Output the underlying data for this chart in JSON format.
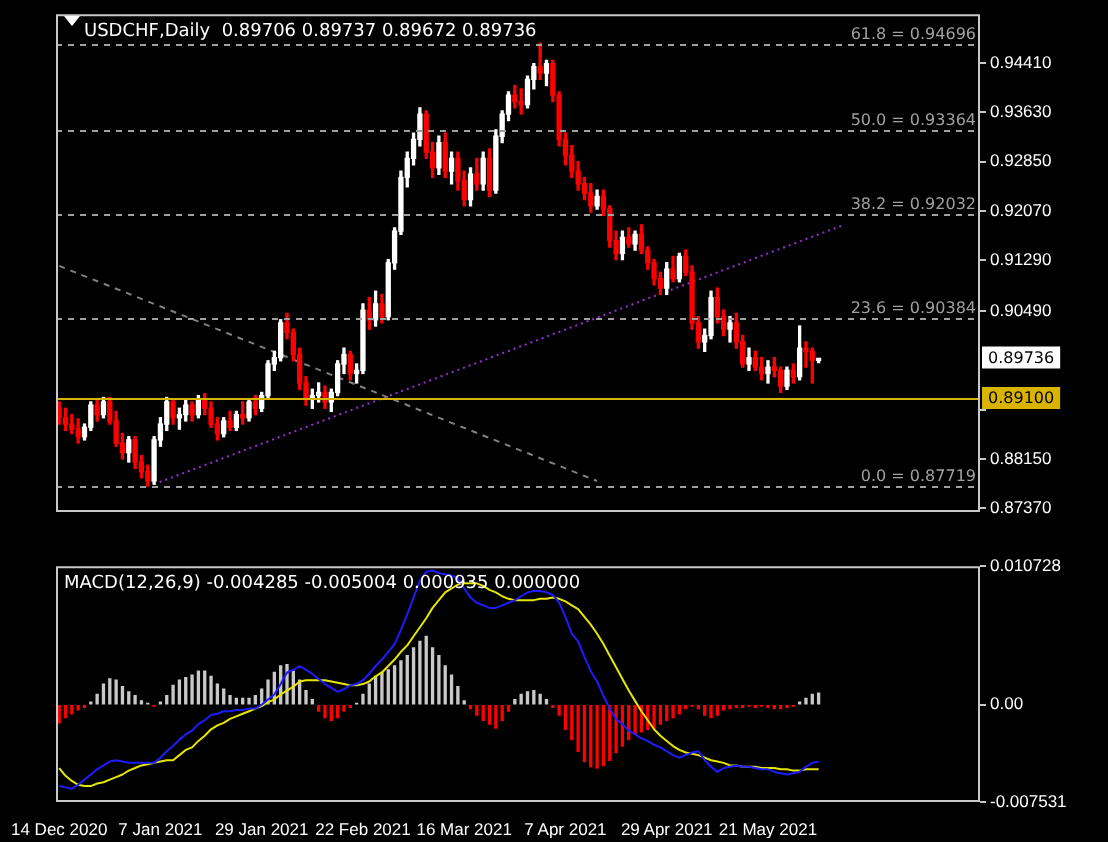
{
  "chart_data": [
    {
      "type": "candlestick",
      "title": "USDCHF,Daily  0.89706 0.89737 0.89672 0.89736",
      "categories": [
        null,
        null,
        null,
        null,
        null,
        null,
        null,
        null,
        null,
        null,
        null,
        null,
        null,
        null,
        null,
        null,
        null,
        null,
        null,
        null,
        null,
        null,
        null,
        null,
        null,
        null,
        null,
        null,
        null,
        null,
        null,
        null,
        null,
        null,
        null,
        null,
        null,
        null,
        null,
        null,
        null,
        null,
        null,
        null,
        null,
        null,
        null,
        null,
        null,
        null,
        null,
        null,
        null,
        null,
        null,
        null,
        null,
        null,
        null,
        null,
        null,
        null,
        null,
        null,
        null,
        null,
        null,
        null,
        null,
        null,
        null,
        null,
        null,
        null,
        null,
        null,
        null,
        null,
        null,
        null,
        null,
        null,
        null,
        null,
        null,
        null,
        null,
        null,
        null,
        null,
        null,
        null,
        null,
        null,
        null,
        null,
        null,
        null,
        null,
        null,
        null,
        null,
        null,
        null,
        null,
        null,
        null,
        null,
        null,
        null,
        null,
        null,
        null,
        null,
        null,
        null,
        null,
        null,
        null,
        null,
        null,
        null,
        null,
        null,
        null,
        null,
        null,
        null,
        null,
        null,
        null,
        null,
        null,
        null,
        null,
        null,
        null,
        null,
        null,
        null,
        null,
        null,
        null,
        null,
        null,
        null
      ],
      "ohlc": [
        [
          0.8895,
          0.8905,
          0.887,
          0.888
        ],
        [
          0.888,
          0.8895,
          0.886,
          0.887
        ],
        [
          0.887,
          0.8885,
          0.8855,
          0.8862
        ],
        [
          0.8862,
          0.8878,
          0.884,
          0.885
        ],
        [
          0.885,
          0.887,
          0.8845,
          0.8865
        ],
        [
          0.8865,
          0.8905,
          0.886,
          0.89
        ],
        [
          0.89,
          0.891,
          0.8875,
          0.8885
        ],
        [
          0.8885,
          0.8912,
          0.888,
          0.8905
        ],
        [
          0.8905,
          0.8912,
          0.887,
          0.8875
        ],
        [
          0.8875,
          0.889,
          0.8835,
          0.884
        ],
        [
          0.884,
          0.8855,
          0.8815,
          0.8825
        ],
        [
          0.8825,
          0.885,
          0.881,
          0.8845
        ],
        [
          0.8845,
          0.885,
          0.88,
          0.881
        ],
        [
          0.881,
          0.882,
          0.8785,
          0.8795
        ],
        [
          0.8795,
          0.8805,
          0.8772,
          0.878
        ],
        [
          0.878,
          0.885,
          0.8775,
          0.8845
        ],
        [
          0.8845,
          0.888,
          0.8835,
          0.887
        ],
        [
          0.887,
          0.8912,
          0.886,
          0.8905
        ],
        [
          0.8905,
          0.891,
          0.887,
          0.888
        ],
        [
          0.888,
          0.8895,
          0.8862,
          0.8885
        ],
        [
          0.8885,
          0.891,
          0.8875,
          0.89
        ],
        [
          0.89,
          0.8905,
          0.8875,
          0.8885
        ],
        [
          0.8885,
          0.8915,
          0.888,
          0.891
        ],
        [
          0.891,
          0.8918,
          0.8885,
          0.8895
        ],
        [
          0.8895,
          0.8905,
          0.8865,
          0.887
        ],
        [
          0.887,
          0.888,
          0.8845,
          0.8855
        ],
        [
          0.8855,
          0.888,
          0.885,
          0.8875
        ],
        [
          0.8875,
          0.889,
          0.886,
          0.8865
        ],
        [
          0.8865,
          0.889,
          0.886,
          0.8885
        ],
        [
          0.8885,
          0.8905,
          0.887,
          0.888
        ],
        [
          0.888,
          0.891,
          0.8875,
          0.8905
        ],
        [
          0.8905,
          0.8915,
          0.8885,
          0.8895
        ],
        [
          0.8895,
          0.892,
          0.889,
          0.8915
        ],
        [
          0.8915,
          0.897,
          0.891,
          0.8965
        ],
        [
          0.8965,
          0.8985,
          0.8955,
          0.8975
        ],
        [
          0.8975,
          0.9035,
          0.897,
          0.903
        ],
        [
          0.903,
          0.9045,
          0.9005,
          0.9015
        ],
        [
          0.9015,
          0.902,
          0.897,
          0.898
        ],
        [
          0.898,
          0.899,
          0.8925,
          0.8935
        ],
        [
          0.8935,
          0.8945,
          0.89,
          0.891
        ],
        [
          0.891,
          0.8925,
          0.8895,
          0.8915
        ],
        [
          0.8915,
          0.8935,
          0.8905,
          0.892
        ],
        [
          0.892,
          0.893,
          0.8895,
          0.8905
        ],
        [
          0.8905,
          0.8925,
          0.889,
          0.892
        ],
        [
          0.892,
          0.897,
          0.8915,
          0.8965
        ],
        [
          0.8965,
          0.899,
          0.895,
          0.898
        ],
        [
          0.898,
          0.8985,
          0.894,
          0.895
        ],
        [
          0.895,
          0.8965,
          0.8935,
          0.8955
        ],
        [
          0.8955,
          0.906,
          0.895,
          0.905
        ],
        [
          0.905,
          0.907,
          0.902,
          0.9035
        ],
        [
          0.9035,
          0.908,
          0.9025,
          0.906
        ],
        [
          0.906,
          0.9075,
          0.903,
          0.904
        ],
        [
          0.904,
          0.913,
          0.9035,
          0.9125
        ],
        [
          0.9125,
          0.918,
          0.9115,
          0.9175
        ],
        [
          0.9175,
          0.927,
          0.917,
          0.926
        ],
        [
          0.926,
          0.93,
          0.9245,
          0.929
        ],
        [
          0.929,
          0.933,
          0.928,
          0.932
        ],
        [
          0.932,
          0.937,
          0.931,
          0.936
        ],
        [
          0.936,
          0.9365,
          0.929,
          0.93
        ],
        [
          0.93,
          0.9315,
          0.926,
          0.9275
        ],
        [
          0.9275,
          0.9325,
          0.9265,
          0.9315
        ],
        [
          0.9315,
          0.933,
          0.926,
          0.927
        ],
        [
          0.927,
          0.93,
          0.925,
          0.929
        ],
        [
          0.929,
          0.93,
          0.924,
          0.9255
        ],
        [
          0.9255,
          0.927,
          0.9215,
          0.9225
        ],
        [
          0.9225,
          0.9275,
          0.9215,
          0.9265
        ],
        [
          0.9265,
          0.929,
          0.924,
          0.925
        ],
        [
          0.925,
          0.93,
          0.924,
          0.929
        ],
        [
          0.929,
          0.9305,
          0.923,
          0.924
        ],
        [
          0.924,
          0.9335,
          0.9235,
          0.9325
        ],
        [
          0.9325,
          0.9365,
          0.9315,
          0.936
        ],
        [
          0.936,
          0.9395,
          0.935,
          0.939
        ],
        [
          0.939,
          0.9405,
          0.937,
          0.938
        ],
        [
          0.938,
          0.94,
          0.936,
          0.9375
        ],
        [
          0.9375,
          0.942,
          0.937,
          0.9415
        ],
        [
          0.9415,
          0.944,
          0.94,
          0.9435
        ],
        [
          0.9435,
          0.9472,
          0.9415,
          0.9425
        ],
        [
          0.9425,
          0.9445,
          0.9405,
          0.944
        ],
        [
          0.944,
          0.9445,
          0.938,
          0.939
        ],
        [
          0.939,
          0.9395,
          0.931,
          0.932
        ],
        [
          0.932,
          0.933,
          0.928,
          0.9295
        ],
        [
          0.9295,
          0.931,
          0.926,
          0.927
        ],
        [
          0.927,
          0.9285,
          0.924,
          0.925
        ],
        [
          0.925,
          0.926,
          0.9225,
          0.9235
        ],
        [
          0.9235,
          0.925,
          0.9205,
          0.9215
        ],
        [
          0.9215,
          0.924,
          0.921,
          0.923
        ],
        [
          0.923,
          0.924,
          0.92,
          0.921
        ],
        [
          0.921,
          0.9215,
          0.915,
          0.916
        ],
        [
          0.916,
          0.9175,
          0.913,
          0.914
        ],
        [
          0.914,
          0.9175,
          0.913,
          0.9165
        ],
        [
          0.9165,
          0.918,
          0.915,
          0.9155
        ],
        [
          0.9155,
          0.9175,
          0.9145,
          0.917
        ],
        [
          0.917,
          0.9185,
          0.914,
          0.9145
        ],
        [
          0.9145,
          0.915,
          0.9115,
          0.9125
        ],
        [
          0.9125,
          0.913,
          0.909,
          0.91
        ],
        [
          0.91,
          0.911,
          0.9075,
          0.9085
        ],
        [
          0.9085,
          0.9125,
          0.9075,
          0.9115
        ],
        [
          0.9115,
          0.9135,
          0.9095,
          0.91
        ],
        [
          0.91,
          0.914,
          0.9095,
          0.9135
        ],
        [
          0.9135,
          0.9145,
          0.9105,
          0.911
        ],
        [
          0.911,
          0.912,
          0.902,
          0.903
        ],
        [
          0.903,
          0.904,
          0.899,
          0.9
        ],
        [
          0.9,
          0.902,
          0.8985,
          0.901
        ],
        [
          0.901,
          0.908,
          0.9005,
          0.907
        ],
        [
          0.907,
          0.9085,
          0.903,
          0.904
        ],
        [
          0.904,
          0.905,
          0.901,
          0.902
        ],
        [
          0.902,
          0.904,
          0.9,
          0.903
        ],
        [
          0.903,
          0.9045,
          0.899,
          0.9
        ],
        [
          0.9,
          0.901,
          0.896,
          0.8965
        ],
        [
          0.8965,
          0.899,
          0.8955,
          0.8975
        ],
        [
          0.8975,
          0.8985,
          0.8955,
          0.896
        ],
        [
          0.896,
          0.8975,
          0.894,
          0.895
        ],
        [
          0.895,
          0.897,
          0.8935,
          0.896
        ],
        [
          0.896,
          0.8975,
          0.8945,
          0.8955
        ],
        [
          0.8955,
          0.896,
          0.892,
          0.893
        ],
        [
          0.893,
          0.896,
          0.8925,
          0.8955
        ],
        [
          0.8955,
          0.8965,
          0.8935,
          0.8945
        ],
        [
          0.8945,
          0.9025,
          0.894,
          0.899
        ],
        [
          0.899,
          0.9,
          0.896,
          0.8985
        ],
        [
          0.8985,
          0.899,
          0.8935,
          0.8971
        ],
        [
          0.89706,
          0.89737,
          0.89672,
          0.89736
        ],
        null,
        null,
        null,
        null,
        null,
        null,
        null,
        null,
        null,
        null,
        null,
        null,
        null,
        null,
        null,
        null,
        null,
        null,
        null,
        null,
        null,
        null,
        null,
        null,
        null
      ],
      "colors": [
        "#ff0000",
        "#ff0000",
        "#ff0000",
        "#ff0000",
        "#ffffff",
        "#ffffff",
        "#ff0000",
        "#ffffff",
        "#ff0000",
        "#ff0000",
        "#ff0000",
        "#ffffff",
        "#ff0000",
        "#ff0000",
        "#ff0000",
        "#ffffff",
        "#ffffff",
        "#ffffff",
        "#ff0000",
        "#ffffff",
        "#ffffff",
        "#ff0000",
        "#ffffff",
        "#ff0000",
        "#ff0000",
        "#ff0000",
        "#ffffff",
        "#ff0000",
        "#ffffff",
        "#ff0000",
        "#ffffff",
        "#ff0000",
        "#ffffff",
        "#ffffff",
        "#ffffff",
        "#ffffff",
        "#ff0000",
        "#ff0000",
        "#ff0000",
        "#ff0000",
        "#ffffff",
        "#ffffff",
        "#ff0000",
        "#ffffff",
        "#ffffff",
        "#ffffff",
        "#ff0000",
        "#ffffff",
        "#ffffff",
        "#ff0000",
        "#ffffff",
        "#ff0000",
        "#ffffff",
        "#ffffff",
        "#ffffff",
        "#ffffff",
        "#ffffff",
        "#ffffff",
        "#ff0000",
        "#ff0000",
        "#ffffff",
        "#ff0000",
        "#ffffff",
        "#ff0000",
        "#ff0000",
        "#ffffff",
        "#ff0000",
        "#ffffff",
        "#ff0000",
        "#ffffff",
        "#ffffff",
        "#ffffff",
        "#ff0000",
        "#ff0000",
        "#ffffff",
        "#ffffff",
        "#ff0000",
        "#ffffff",
        "#ff0000",
        "#ff0000",
        "#ff0000",
        "#ff0000",
        "#ff0000",
        "#ff0000",
        "#ff0000",
        "#ffffff",
        "#ff0000",
        "#ff0000",
        "#ff0000",
        "#ffffff",
        "#ff0000",
        "#ffffff",
        "#ff0000",
        "#ff0000",
        "#ff0000",
        "#ff0000",
        "#ffffff",
        "#ff0000",
        "#ffffff",
        "#ff0000",
        "#ff0000",
        "#ff0000",
        "#ffffff",
        "#ffffff",
        "#ff0000",
        "#ff0000",
        "#ffffff",
        "#ff0000",
        "#ff0000",
        "#ffffff",
        "#ff0000",
        "#ff0000",
        "#ffffff",
        "#ff0000",
        "#ff0000",
        "#ffffff",
        "#ff0000",
        "#ffffff",
        "#ff0000",
        "#ff0000",
        "#ffffff",
        null,
        null,
        null,
        null,
        null,
        null,
        null,
        null,
        null,
        null,
        null,
        null,
        null,
        null,
        null,
        null,
        null,
        null,
        null,
        null,
        null,
        null,
        null,
        null,
        null
      ],
      "series": [
        {
          "type": "line",
          "color": "#808080",
          "line_style": "dashed",
          "values": [
            0.912,
            null,
            null,
            null,
            null,
            null,
            null,
            null,
            null,
            null,
            null,
            null,
            null,
            null,
            null,
            null,
            null,
            null,
            null,
            null,
            null,
            null,
            null,
            null,
            null,
            null,
            null,
            null,
            null,
            null,
            null,
            null,
            null,
            null,
            null,
            null,
            null,
            null,
            null,
            null,
            null,
            null,
            null,
            null,
            null,
            null,
            null,
            null,
            null,
            null,
            null,
            null,
            null,
            null,
            null,
            null,
            null,
            null,
            null,
            null,
            null,
            null,
            null,
            null,
            null,
            null,
            null,
            null,
            null,
            null,
            null,
            null,
            null,
            null,
            null,
            null,
            null,
            null,
            null,
            null,
            null,
            null,
            null,
            null,
            null,
            0.878,
            null,
            null,
            null,
            null,
            null,
            null,
            null,
            null,
            null,
            null,
            null,
            null,
            null,
            null,
            null,
            null,
            null,
            null,
            null,
            null,
            null,
            null,
            null,
            null,
            null,
            null,
            null,
            null,
            null,
            null,
            null,
            null,
            null,
            null,
            null,
            null,
            null,
            null,
            null,
            null,
            null,
            null,
            null,
            null,
            null,
            null,
            null,
            null,
            null,
            null,
            null,
            null,
            null,
            null,
            null,
            null,
            null,
            null,
            null,
            null
          ]
        },
        {
          "type": "line",
          "color": "#9a2fd6",
          "line_style": "dotted",
          "values": [
            null,
            null,
            null,
            null,
            null,
            null,
            null,
            null,
            null,
            null,
            null,
            null,
            null,
            null,
            null,
            0.8775,
            null,
            null,
            null,
            null,
            null,
            null,
            null,
            null,
            null,
            null,
            null,
            null,
            null,
            null,
            null,
            null,
            null,
            null,
            null,
            null,
            null,
            null,
            null,
            null,
            null,
            null,
            null,
            null,
            null,
            null,
            null,
            null,
            null,
            null,
            null,
            null,
            null,
            null,
            null,
            null,
            null,
            null,
            null,
            null,
            null,
            null,
            null,
            null,
            null,
            null,
            null,
            null,
            null,
            null,
            null,
            null,
            null,
            null,
            null,
            null,
            null,
            null,
            null,
            null,
            null,
            null,
            null,
            null,
            null,
            null,
            null,
            null,
            null,
            null,
            null,
            null,
            null,
            null,
            null,
            null,
            null,
            null,
            null,
            null,
            null,
            null,
            null,
            null,
            null,
            null,
            null,
            null,
            null,
            null,
            null,
            null,
            null,
            null,
            null,
            null,
            null,
            null,
            null,
            null,
            null,
            null,
            null,
            null,
            0.9185,
            null,
            null,
            null,
            null,
            null,
            null,
            null,
            null,
            null,
            null,
            null,
            null,
            null,
            null,
            null,
            null,
            null,
            null,
            null,
            null,
            null
          ]
        }
      ],
      "ylim": [
        0.8731,
        0.9518
      ],
      "yticks": [
        {
          "value": 0.9441,
          "label": "0.94410"
        },
        {
          "value": 0.9363,
          "label": "0.93630"
        },
        {
          "value": 0.9285,
          "label": "0.92850"
        },
        {
          "value": 0.9207,
          "label": "0.92070"
        },
        {
          "value": 0.9129,
          "label": "0.91290"
        },
        {
          "value": 0.9049,
          "label": "0.90490"
        },
        {
          "value": 0.8893,
          "label": null
        },
        {
          "value": 0.8815,
          "label": "0.88150"
        },
        {
          "value": 0.8737,
          "label": "0.87370"
        }
      ],
      "ref_lines": [
        {
          "axis": "y",
          "value": 0.94696,
          "label": "61.8 = 0.94696",
          "color": "#a0a0a0",
          "line_style": "dashed"
        },
        {
          "axis": "y",
          "value": 0.93364,
          "label": "50.0 = 0.93364",
          "color": "#a0a0a0",
          "line_style": "dashed"
        },
        {
          "axis": "y",
          "value": 0.92032,
          "label": "38.2 = 0.92032",
          "color": "#a0a0a0",
          "line_style": "dashed"
        },
        {
          "axis": "y",
          "value": 0.90384,
          "label": "23.6 = 0.90384",
          "color": "#a0a0a0",
          "line_style": "dashed"
        },
        {
          "axis": "y",
          "value": 0.87719,
          "label": "0.0 = 0.87719",
          "color": "#a0a0a0",
          "line_style": "dashed"
        },
        {
          "axis": "y",
          "value": 0.891,
          "label": "0.89100",
          "color": "#d8b400",
          "line_style": "solid"
        }
      ],
      "annotations": [
        "0.89736"
      ],
      "tick_labels": "y",
      "grid": false,
      "legend": false
    },
    {
      "type": "bar",
      "title": "MACD(12,26,9) -0.004285 -0.005004 0.000935 0.000000",
      "categories": [
        "14 Dec 2020",
        null,
        null,
        null,
        null,
        null,
        null,
        null,
        null,
        null,
        null,
        null,
        null,
        null,
        null,
        null,
        "7 Jan 2021",
        null,
        null,
        null,
        null,
        null,
        null,
        null,
        null,
        null,
        null,
        null,
        null,
        null,
        null,
        null,
        "29 Jan 2021",
        null,
        null,
        null,
        null,
        null,
        null,
        null,
        null,
        null,
        null,
        null,
        null,
        null,
        null,
        null,
        "22 Feb 2021",
        null,
        null,
        null,
        null,
        null,
        null,
        null,
        null,
        null,
        null,
        null,
        null,
        null,
        null,
        null,
        "16 Mar 2021",
        null,
        null,
        null,
        null,
        null,
        null,
        null,
        null,
        null,
        null,
        null,
        null,
        null,
        null,
        null,
        "7 Apr 2021",
        null,
        null,
        null,
        null,
        null,
        null,
        null,
        null,
        null,
        null,
        null,
        null,
        null,
        null,
        null,
        "29 Apr 2021",
        null,
        null,
        null,
        null,
        null,
        null,
        null,
        null,
        null,
        null,
        null,
        null,
        null,
        null,
        null,
        "21 May 2021",
        null,
        null,
        null,
        null,
        null,
        null,
        null,
        null,
        null,
        null,
        null,
        null,
        null,
        null,
        null,
        null,
        null,
        null,
        null,
        null,
        null,
        null,
        null,
        null,
        null,
        null,
        null,
        null,
        null,
        null,
        null,
        null,
        null
      ],
      "series": [
        {
          "type": "bar",
          "values": [
            -0.0014,
            -0.001,
            -0.0007,
            -0.0004,
            -0.0002,
            0.0002,
            0.0008,
            0.0016,
            0.002,
            0.0019,
            0.0014,
            0.001,
            0.0007,
            0.0003,
            0.0001,
            -0.0001,
            0.0002,
            0.0007,
            0.0015,
            0.0019,
            0.0021,
            0.0023,
            0.0026,
            0.0026,
            0.0022,
            0.0016,
            0.0012,
            0.0007,
            0.0005,
            0.0005,
            0.0005,
            0.0007,
            0.0012,
            0.0019,
            0.0025,
            0.003,
            0.0031,
            0.0026,
            0.0019,
            0.0011,
            0.0004,
            -0.0005,
            -0.001,
            -0.0012,
            -0.001,
            -0.0005,
            -0.0002,
            0.0001,
            0.0008,
            0.0016,
            0.0022,
            0.0025,
            0.0027,
            0.003,
            0.0034,
            0.0038,
            0.0044,
            0.0049,
            0.0053,
            0.0044,
            0.0038,
            0.003,
            0.0023,
            0.0014,
            0.0003,
            -0.0003,
            -0.0008,
            -0.0012,
            -0.0015,
            -0.0018,
            -0.0012,
            -0.0005,
            0.0004,
            0.0008,
            0.001,
            0.0011,
            0.0008,
            0.0004,
            -0.0002,
            -0.0008,
            -0.0019,
            -0.0027,
            -0.0036,
            -0.0044,
            -0.0048,
            -0.0049,
            -0.0047,
            -0.0043,
            -0.0037,
            -0.0032,
            -0.0027,
            -0.0023,
            -0.0021,
            -0.0019,
            -0.0018,
            -0.0015,
            -0.0012,
            -0.001,
            -0.0007,
            -0.0003,
            -0.0001,
            -0.0003,
            -0.0008,
            -0.001,
            -0.0008,
            -0.0004,
            -0.0003,
            -0.0002,
            -0.0002,
            -0.0001,
            -0.0002,
            -0.0001,
            -0.0002,
            -0.0003,
            -0.0003,
            -0.0002,
            -0.0001,
            0.0002,
            0.0005,
            0.0008,
            0.0009,
            null,
            null,
            null,
            null,
            null,
            null,
            null,
            null,
            null,
            null,
            null,
            null,
            null,
            null,
            null,
            null,
            null,
            null,
            null,
            null,
            null,
            null,
            null,
            null,
            null
          ],
          "colors": [
            "#ff0000",
            "#ff0000",
            "#ff0000",
            "#ff0000",
            "#ff0000",
            "#c8c8c8",
            "#c8c8c8",
            "#c8c8c8",
            "#c8c8c8",
            "#c8c8c8",
            "#c8c8c8",
            "#c8c8c8",
            "#c8c8c8",
            "#c8c8c8",
            "#c8c8c8",
            "#ff0000",
            "#c8c8c8",
            "#c8c8c8",
            "#c8c8c8",
            "#c8c8c8",
            "#c8c8c8",
            "#c8c8c8",
            "#c8c8c8",
            "#c8c8c8",
            "#c8c8c8",
            "#c8c8c8",
            "#c8c8c8",
            "#c8c8c8",
            "#c8c8c8",
            "#c8c8c8",
            "#c8c8c8",
            "#c8c8c8",
            "#c8c8c8",
            "#c8c8c8",
            "#c8c8c8",
            "#c8c8c8",
            "#c8c8c8",
            "#c8c8c8",
            "#c8c8c8",
            "#c8c8c8",
            "#c8c8c8",
            "#ff0000",
            "#ff0000",
            "#ff0000",
            "#ff0000",
            "#ff0000",
            "#ff0000",
            "#c8c8c8",
            "#c8c8c8",
            "#c8c8c8",
            "#c8c8c8",
            "#c8c8c8",
            "#c8c8c8",
            "#c8c8c8",
            "#c8c8c8",
            "#c8c8c8",
            "#c8c8c8",
            "#c8c8c8",
            "#c8c8c8",
            "#c8c8c8",
            "#c8c8c8",
            "#c8c8c8",
            "#c8c8c8",
            "#c8c8c8",
            "#c8c8c8",
            "#ff0000",
            "#ff0000",
            "#ff0000",
            "#ff0000",
            "#ff0000",
            "#ff0000",
            "#ff0000",
            "#c8c8c8",
            "#c8c8c8",
            "#c8c8c8",
            "#c8c8c8",
            "#c8c8c8",
            "#c8c8c8",
            "#ff0000",
            "#ff0000",
            "#ff0000",
            "#ff0000",
            "#ff0000",
            "#ff0000",
            "#ff0000",
            "#ff0000",
            "#ff0000",
            "#ff0000",
            "#ff0000",
            "#ff0000",
            "#ff0000",
            "#ff0000",
            "#ff0000",
            "#ff0000",
            "#ff0000",
            "#ff0000",
            "#ff0000",
            "#ff0000",
            "#ff0000",
            "#ff0000",
            "#ff0000",
            "#ff0000",
            "#ff0000",
            "#ff0000",
            "#ff0000",
            "#ff0000",
            "#ff0000",
            "#ff0000",
            "#ff0000",
            "#ff0000",
            "#ff0000",
            "#ff0000",
            "#ff0000",
            "#ff0000",
            "#ff0000",
            "#ff0000",
            "#ff0000",
            "#c8c8c8",
            "#c8c8c8",
            "#c8c8c8",
            "#c8c8c8",
            null,
            null,
            null,
            null,
            null,
            null,
            null,
            null,
            null,
            null,
            null,
            null,
            null,
            null,
            null,
            null,
            null,
            null,
            null,
            null,
            null,
            null,
            null,
            null,
            null
          ]
        },
        {
          "type": "line",
          "color": "#1c1cff",
          "values": [
            -0.0063,
            -0.0064,
            -0.0065,
            -0.0062,
            -0.0058,
            -0.0054,
            -0.005,
            -0.0047,
            -0.0044,
            -0.0043,
            -0.0044,
            -0.0045,
            -0.0045,
            -0.0045,
            -0.0045,
            -0.0045,
            -0.0041,
            -0.0036,
            -0.0032,
            -0.0027,
            -0.0023,
            -0.002,
            -0.0015,
            -0.0012,
            -0.0008,
            -0.0007,
            -0.0005,
            -0.0005,
            -0.0004,
            -0.0004,
            -0.0003,
            -0.0003,
            0.0,
            0.0004,
            0.0008,
            0.0016,
            0.0025,
            0.0027,
            0.003,
            0.0027,
            0.0024,
            0.002,
            0.0016,
            0.0013,
            0.001,
            0.0012,
            0.0015,
            0.0016,
            0.0019,
            0.0024,
            0.003,
            0.0035,
            0.0041,
            0.0047,
            0.0058,
            0.007,
            0.0083,
            0.0096,
            0.0103,
            0.0104,
            0.0102,
            0.0101,
            0.01,
            0.0098,
            0.009,
            0.0083,
            0.0079,
            0.0077,
            0.0075,
            0.0075,
            0.0077,
            0.0079,
            0.0081,
            0.0084,
            0.0087,
            0.0088,
            0.0088,
            0.0087,
            0.0085,
            0.0079,
            0.0068,
            0.0055,
            0.0049,
            0.0037,
            0.0026,
            0.0018,
            0.0007,
            -0.0003,
            -0.0011,
            -0.0015,
            -0.002,
            -0.0023,
            -0.0026,
            -0.0028,
            -0.0031,
            -0.0033,
            -0.0036,
            -0.0039,
            -0.0041,
            -0.0039,
            -0.0037,
            -0.0036,
            -0.0043,
            -0.0048,
            -0.0052,
            -0.0049,
            -0.0048,
            -0.0047,
            -0.0048,
            -0.0048,
            -0.0049,
            -0.005,
            -0.005,
            -0.0052,
            -0.0053,
            -0.0054,
            -0.0053,
            -0.0052,
            -0.0048,
            -0.0045,
            -0.0044,
            null,
            null,
            null,
            null,
            null,
            null,
            null,
            null,
            null,
            null,
            null,
            null,
            null,
            null,
            null,
            null,
            null,
            null,
            null,
            null,
            null,
            null,
            null,
            null,
            null
          ]
        },
        {
          "type": "line",
          "color": "#e6e600",
          "values": [
            -0.0049,
            -0.0055,
            -0.0059,
            -0.0062,
            -0.0063,
            -0.0063,
            -0.0061,
            -0.006,
            -0.0058,
            -0.0056,
            -0.0054,
            -0.0051,
            -0.0049,
            -0.0047,
            -0.0046,
            -0.0045,
            -0.0044,
            -0.0043,
            -0.0043,
            -0.0039,
            -0.0035,
            -0.0033,
            -0.0028,
            -0.0024,
            -0.0019,
            -0.0016,
            -0.0014,
            -0.0011,
            -0.0009,
            -0.0007,
            -0.0005,
            -0.0003,
            -0.0001,
            0.0002,
            0.0004,
            0.0008,
            0.0011,
            0.0014,
            0.0018,
            0.0019,
            0.0019,
            0.0019,
            0.0019,
            0.0018,
            0.0017,
            0.0016,
            0.0015,
            0.0015,
            0.0016,
            0.0018,
            0.0022,
            0.0025,
            0.003,
            0.0035,
            0.0041,
            0.0046,
            0.0053,
            0.006,
            0.0067,
            0.0075,
            0.0081,
            0.0087,
            0.009,
            0.0093,
            0.0094,
            0.0094,
            0.0094,
            0.0092,
            0.0089,
            0.0087,
            0.0084,
            0.0082,
            0.0081,
            0.0081,
            0.0081,
            0.0081,
            0.0082,
            0.0082,
            0.0083,
            0.0082,
            0.008,
            0.0077,
            0.0074,
            0.0068,
            0.0062,
            0.0055,
            0.0047,
            0.0038,
            0.0029,
            0.002,
            0.0011,
            0.0003,
            -0.0005,
            -0.0012,
            -0.0019,
            -0.0024,
            -0.0028,
            -0.0032,
            -0.0035,
            -0.0037,
            -0.0038,
            -0.0039,
            -0.0041,
            -0.0043,
            -0.0044,
            -0.0045,
            -0.0047,
            -0.0047,
            -0.0048,
            -0.0048,
            -0.0048,
            -0.0049,
            -0.0049,
            -0.0049,
            -0.005,
            -0.005,
            -0.0051,
            -0.0051,
            -0.005,
            -0.005,
            -0.005,
            null,
            null,
            null,
            null,
            null,
            null,
            null,
            null,
            null,
            null,
            null,
            null,
            null,
            null,
            null,
            null,
            null,
            null,
            null,
            null,
            null,
            null,
            null,
            null,
            null
          ]
        }
      ],
      "ylim": [
        -0.007531,
        0.010728
      ],
      "yticks": [
        0.010728,
        {
          "value": 0,
          "label": "0.00"
        },
        -0.007531
      ],
      "grid": false,
      "legend": false
    }
  ]
}
